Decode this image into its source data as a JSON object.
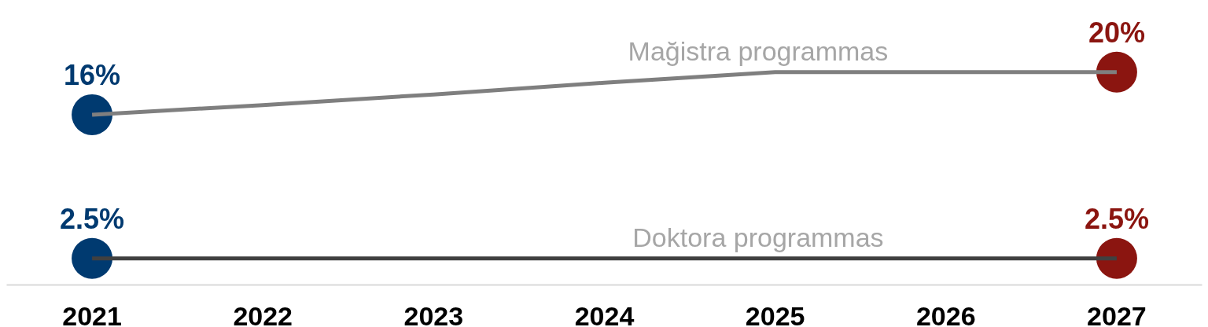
{
  "chart_data": {
    "type": "line",
    "categories": [
      "2021",
      "2022",
      "2023",
      "2024",
      "2025",
      "2026",
      "2027"
    ],
    "series": [
      {
        "name": "Mağistra programmas",
        "color": "#7f7f7f",
        "values": [
          16,
          16.9,
          17.9,
          19,
          20,
          20,
          20
        ]
      },
      {
        "name": "Doktora programmas",
        "color": "#404040",
        "values": [
          2.5,
          2.5,
          2.5,
          2.5,
          2.5,
          2.5,
          2.5
        ]
      },
      {
        "type": "scatter",
        "values": [
          16,
          null,
          null,
          null,
          null,
          null,
          20
        ],
        "colors": [
          "#003a70",
          null,
          null,
          null,
          null,
          null,
          "#8b1510"
        ],
        "value_labels": [
          "16%",
          null,
          null,
          null,
          null,
          null,
          "20%"
        ]
      },
      {
        "type": "scatter",
        "values": [
          2.5,
          null,
          null,
          null,
          null,
          null,
          2.5
        ],
        "colors": [
          "#003a70",
          null,
          null,
          null,
          null,
          null,
          "#8b1510"
        ],
        "value_labels": [
          "2.5%",
          null,
          null,
          null,
          null,
          null,
          "2.5%"
        ]
      }
    ],
    "tick_labels": "x",
    "line_style": "solid"
  }
}
